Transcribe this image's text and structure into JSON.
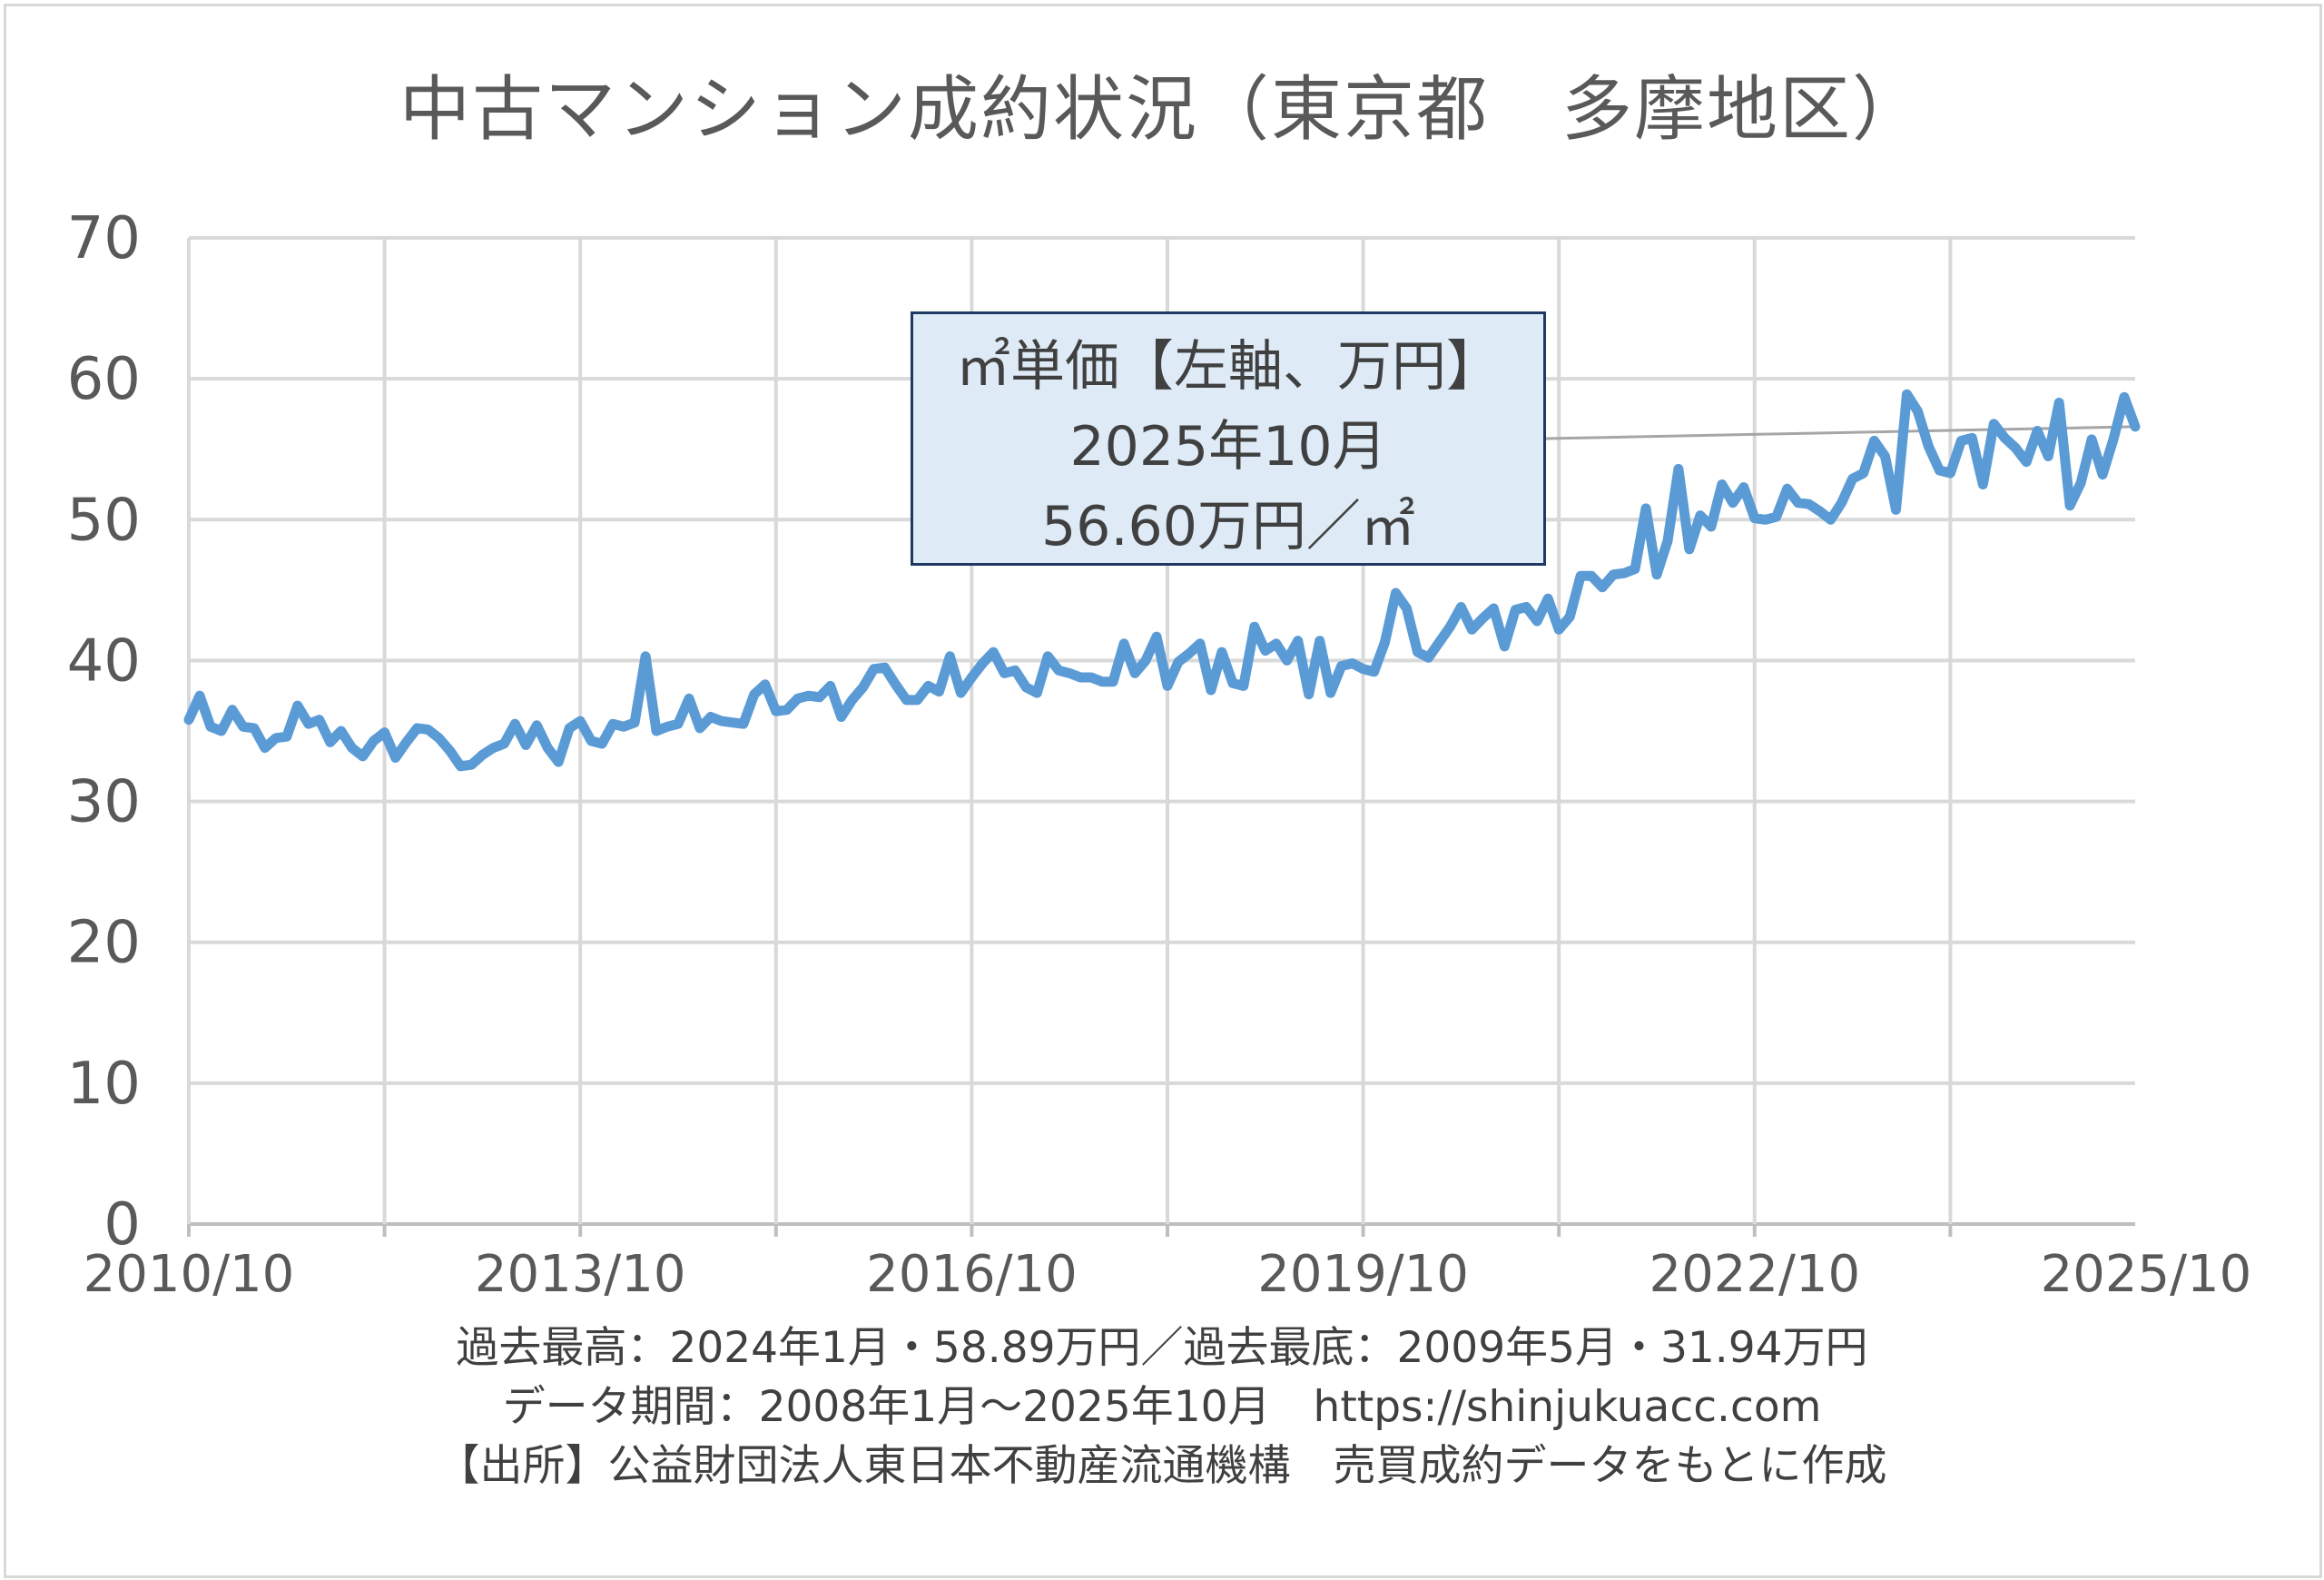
{
  "title": "中古マンション成約状況（東京都　多摩地区）",
  "callout": {
    "line1": "㎡単価【左軸、万円】",
    "line2": "2025年10月",
    "line3": "56.60万円／㎡"
  },
  "footer": {
    "line1": "過去最高：2024年1月・58.89万円／過去最底：2009年5月・31.94万円",
    "line2": "データ期間：2008年1月～2025年10月　https://shinjukuacc.com",
    "line3": "【出所】公益財団法人東日本不動産流通機構　売買成約データをもとに作成"
  },
  "colors": {
    "line": "#5b9bd5",
    "grid": "#d9d9d9",
    "text": "#595959",
    "callout_fill": "#deebf7",
    "callout_border": "#1f3864"
  },
  "chart_data": {
    "type": "line",
    "title": "中古マンション成約状況（東京都　多摩地区）",
    "xlabel": "",
    "ylabel": "",
    "ylim": [
      0,
      70
    ],
    "yticks": [
      0,
      10,
      20,
      30,
      40,
      50,
      60,
      70
    ],
    "x_start": "2010/10",
    "x_end": "2025/10",
    "xtick_labels": [
      "2010/10",
      "2013/10",
      "2016/10",
      "2019/10",
      "2022/10",
      "2025/10"
    ],
    "grid": true,
    "series": [
      {
        "name": "㎡単価【左軸、万円】",
        "values": [
          35.8,
          37.5,
          35.3,
          35.0,
          36.5,
          35.3,
          35.2,
          33.8,
          34.5,
          34.6,
          36.8,
          35.5,
          35.8,
          34.2,
          35.0,
          33.8,
          33.2,
          34.3,
          34.9,
          33.1,
          34.2,
          35.2,
          35.1,
          34.5,
          33.6,
          32.5,
          32.6,
          33.3,
          33.8,
          34.1,
          35.5,
          34.0,
          35.4,
          33.8,
          32.8,
          35.2,
          35.7,
          34.3,
          34.1,
          35.5,
          35.3,
          35.6,
          40.3,
          35.0,
          35.3,
          35.5,
          37.3,
          35.2,
          36.0,
          35.7,
          35.6,
          35.5,
          37.6,
          38.3,
          36.4,
          36.5,
          37.3,
          37.5,
          37.4,
          38.2,
          36.0,
          37.2,
          38.1,
          39.4,
          39.5,
          38.3,
          37.2,
          37.2,
          38.2,
          37.8,
          40.3,
          37.7,
          38.8,
          39.8,
          40.6,
          39.1,
          39.3,
          38.1,
          37.7,
          40.3,
          39.3,
          39.1,
          38.8,
          38.8,
          38.5,
          38.5,
          41.2,
          39.1,
          40.0,
          41.7,
          38.2,
          39.9,
          40.5,
          41.2,
          37.9,
          40.6,
          38.4,
          38.2,
          42.4,
          40.7,
          41.2,
          40.0,
          41.4,
          37.6,
          41.4,
          37.7,
          39.6,
          39.8,
          39.4,
          39.2,
          41.3,
          44.8,
          43.7,
          40.6,
          40.2,
          41.3,
          42.4,
          43.8,
          42.2,
          43.0,
          43.7,
          41.0,
          43.6,
          43.8,
          42.8,
          44.4,
          42.2,
          43.1,
          46.0,
          46.0,
          45.2,
          46.1,
          46.2,
          46.5,
          50.8,
          46.1,
          48.5,
          53.6,
          47.9,
          50.3,
          49.5,
          52.5,
          51.2,
          52.3,
          50.1,
          50.0,
          50.2,
          52.2,
          51.2,
          51.1,
          50.6,
          50.0,
          51.2,
          52.9,
          53.3,
          55.6,
          54.5,
          50.7,
          58.9,
          57.7,
          55.2,
          53.5,
          53.3,
          55.6,
          55.8,
          52.5,
          56.8,
          55.8,
          55.1,
          54.1,
          56.3,
          54.5,
          58.3,
          51.0,
          52.6,
          55.7,
          53.2,
          55.7,
          58.7,
          56.6
        ]
      }
    ],
    "annotation": {
      "date": "2025/10",
      "value": 56.6
    }
  }
}
